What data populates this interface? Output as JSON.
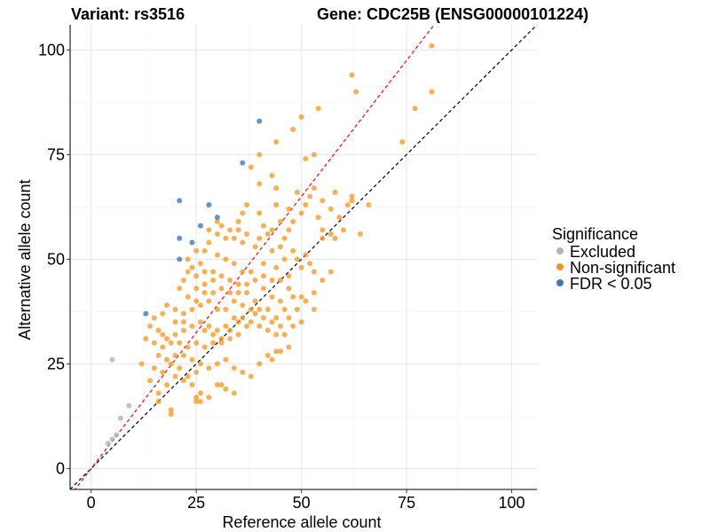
{
  "chart_data": {
    "type": "scatter",
    "title_left": "Variant: rs3516",
    "title_right": "Gene: CDC25B (ENSG00000101224)",
    "xlabel": "Reference allele count",
    "ylabel": "Alternative allele count",
    "xlim": [
      -5,
      106
    ],
    "ylim": [
      -5,
      106
    ],
    "x_ticks": [
      0,
      25,
      50,
      75,
      100
    ],
    "y_ticks": [
      0,
      25,
      50,
      75,
      100
    ],
    "x_tick_labels": [
      "0",
      "25",
      "50",
      "75",
      "100"
    ],
    "y_tick_labels": [
      "0",
      "25",
      "50",
      "75",
      "100"
    ],
    "grid": true,
    "legend": {
      "title": "Significance",
      "placement": "right",
      "entries": [
        {
          "label": "Excluded",
          "color": "#b3b3b3"
        },
        {
          "label": "Non-significant",
          "color": "#f7941d"
        },
        {
          "label": "FDR < 0.05",
          "color": "#4575b4"
        }
      ]
    },
    "reference_lines": [
      {
        "name": "identity",
        "slope": 1.0,
        "intercept": 0,
        "color": "#000000",
        "style": "dashed"
      },
      {
        "name": "fitted-ratio",
        "slope": 1.3,
        "intercept": 0,
        "color": "#ff0000",
        "style": "dashed"
      }
    ],
    "series": [
      {
        "name": "Excluded",
        "color": "#b3b3b3",
        "points": [
          [
            5,
            26
          ],
          [
            4,
            6
          ],
          [
            5,
            7
          ],
          [
            6,
            8
          ],
          [
            7,
            12
          ],
          [
            9,
            15
          ]
        ]
      },
      {
        "name": "FDR < 0.05",
        "color": "#4575b4",
        "points": [
          [
            40,
            83
          ],
          [
            36,
            73
          ],
          [
            21,
            64
          ],
          [
            28,
            63
          ],
          [
            30,
            60
          ],
          [
            26,
            58
          ],
          [
            21,
            55
          ],
          [
            24,
            54
          ],
          [
            21,
            50
          ],
          [
            13,
            37
          ]
        ]
      },
      {
        "name": "Non-significant",
        "color": "#f7941d",
        "points": [
          [
            81,
            101
          ],
          [
            62,
            94
          ],
          [
            63,
            90
          ],
          [
            81,
            90
          ],
          [
            77,
            86
          ],
          [
            54,
            86
          ],
          [
            50,
            84
          ],
          [
            74,
            78
          ],
          [
            48,
            81
          ],
          [
            44,
            78
          ],
          [
            51,
            74
          ],
          [
            53,
            75
          ],
          [
            40,
            75
          ],
          [
            38,
            72
          ],
          [
            43,
            70
          ],
          [
            44,
            67
          ],
          [
            40,
            68
          ],
          [
            49,
            66
          ],
          [
            53,
            67
          ],
          [
            58,
            66
          ],
          [
            62,
            65
          ],
          [
            44,
            63
          ],
          [
            37,
            63
          ],
          [
            40,
            61
          ],
          [
            36,
            61
          ],
          [
            35,
            59
          ],
          [
            47,
            62
          ],
          [
            50,
            61
          ],
          [
            48,
            59
          ],
          [
            51,
            63
          ],
          [
            52,
            65
          ],
          [
            55,
            64
          ],
          [
            57,
            62
          ],
          [
            59,
            60
          ],
          [
            61,
            63
          ],
          [
            54,
            60
          ],
          [
            55,
            57
          ],
          [
            57,
            56
          ],
          [
            60,
            57
          ],
          [
            64,
            56
          ],
          [
            66,
            63
          ],
          [
            62,
            64
          ],
          [
            55,
            55
          ],
          [
            58,
            55
          ],
          [
            40,
            55
          ],
          [
            39,
            53
          ],
          [
            43,
            52
          ],
          [
            45,
            53
          ],
          [
            46,
            55
          ],
          [
            48,
            52
          ],
          [
            49,
            50
          ],
          [
            51,
            51
          ],
          [
            46,
            50
          ],
          [
            53,
            47
          ],
          [
            50,
            48
          ],
          [
            44,
            48
          ],
          [
            41,
            49
          ],
          [
            36,
            54
          ],
          [
            34,
            55
          ],
          [
            33,
            57
          ],
          [
            31,
            58
          ],
          [
            30,
            56
          ],
          [
            28,
            54
          ],
          [
            27,
            52
          ],
          [
            30,
            51
          ],
          [
            32,
            50
          ],
          [
            34,
            49
          ],
          [
            36,
            47
          ],
          [
            38,
            47
          ],
          [
            29,
            47
          ],
          [
            27,
            47
          ],
          [
            25,
            46
          ],
          [
            24,
            48
          ],
          [
            23,
            47
          ],
          [
            22,
            45
          ],
          [
            25,
            43
          ],
          [
            27,
            42
          ],
          [
            29,
            42
          ],
          [
            31,
            43
          ],
          [
            33,
            42
          ],
          [
            35,
            44
          ],
          [
            37,
            42
          ],
          [
            39,
            40
          ],
          [
            41,
            43
          ],
          [
            43,
            41
          ],
          [
            45,
            40
          ],
          [
            47,
            43
          ],
          [
            48,
            41
          ],
          [
            50,
            41
          ],
          [
            46,
            38
          ],
          [
            44,
            36
          ],
          [
            42,
            38
          ],
          [
            40,
            38
          ],
          [
            38,
            38
          ],
          [
            36,
            39
          ],
          [
            34,
            40
          ],
          [
            32,
            38
          ],
          [
            30,
            38
          ],
          [
            28,
            40
          ],
          [
            26,
            39
          ],
          [
            24,
            38
          ],
          [
            22,
            37
          ],
          [
            20,
            38
          ],
          [
            18,
            39
          ],
          [
            17,
            37
          ],
          [
            15,
            36
          ],
          [
            14,
            34
          ],
          [
            16,
            33
          ],
          [
            18,
            31
          ],
          [
            20,
            32
          ],
          [
            22,
            33
          ],
          [
            24,
            34
          ],
          [
            26,
            35
          ],
          [
            28,
            34
          ],
          [
            30,
            33
          ],
          [
            32,
            34
          ],
          [
            34,
            36
          ],
          [
            36,
            36
          ],
          [
            38,
            35
          ],
          [
            40,
            34
          ],
          [
            42,
            33
          ],
          [
            44,
            32
          ],
          [
            35,
            32
          ],
          [
            33,
            31
          ],
          [
            31,
            30
          ],
          [
            29,
            30
          ],
          [
            27,
            29
          ],
          [
            25,
            30
          ],
          [
            23,
            29
          ],
          [
            21,
            30
          ],
          [
            19,
            30
          ],
          [
            17,
            29
          ],
          [
            15,
            30
          ],
          [
            13,
            31
          ],
          [
            16,
            27
          ],
          [
            18,
            26
          ],
          [
            20,
            27
          ],
          [
            22,
            27
          ],
          [
            24,
            26
          ],
          [
            26,
            25
          ],
          [
            28,
            24
          ],
          [
            30,
            25
          ],
          [
            32,
            26
          ],
          [
            34,
            24
          ],
          [
            36,
            23
          ],
          [
            38,
            22
          ],
          [
            40,
            25
          ],
          [
            42,
            27
          ],
          [
            44,
            28
          ],
          [
            25,
            23
          ],
          [
            23,
            22
          ],
          [
            21,
            24
          ],
          [
            19,
            25
          ],
          [
            17,
            23
          ],
          [
            15,
            24
          ],
          [
            12,
            25
          ],
          [
            14,
            21
          ],
          [
            16,
            18
          ],
          [
            18,
            20
          ],
          [
            20,
            22
          ],
          [
            22,
            21
          ],
          [
            24,
            20
          ],
          [
            26,
            18
          ],
          [
            28,
            17
          ],
          [
            30,
            20
          ],
          [
            32,
            19
          ],
          [
            34,
            18
          ],
          [
            16,
            16
          ],
          [
            19,
            14
          ],
          [
            25,
            17
          ],
          [
            26,
            16
          ],
          [
            53,
            38
          ],
          [
            50,
            35
          ],
          [
            48,
            34
          ],
          [
            46,
            32
          ],
          [
            47,
            29
          ],
          [
            45,
            28
          ],
          [
            43,
            26
          ],
          [
            31,
            20
          ],
          [
            25,
            16
          ],
          [
            19,
            13
          ],
          [
            21,
            43
          ],
          [
            23,
            41
          ],
          [
            25,
            40
          ],
          [
            20,
            35
          ],
          [
            22,
            35
          ],
          [
            17,
            32
          ],
          [
            27,
            33
          ],
          [
            29,
            32
          ],
          [
            31,
            31
          ],
          [
            33,
            33
          ],
          [
            35,
            35
          ],
          [
            37,
            34
          ],
          [
            39,
            37
          ],
          [
            41,
            36
          ],
          [
            43,
            35
          ],
          [
            45,
            34
          ],
          [
            47,
            36
          ],
          [
            49,
            38
          ],
          [
            51,
            40
          ],
          [
            53,
            42
          ],
          [
            55,
            45
          ],
          [
            57,
            47
          ],
          [
            52,
            49
          ],
          [
            47,
            46
          ],
          [
            45,
            45
          ],
          [
            43,
            45
          ],
          [
            41,
            46
          ],
          [
            39,
            45
          ],
          [
            37,
            44
          ],
          [
            35,
            42
          ],
          [
            33,
            45
          ],
          [
            31,
            46
          ],
          [
            29,
            45
          ],
          [
            27,
            44
          ],
          [
            25,
            52
          ],
          [
            23,
            50
          ],
          [
            26,
            49
          ],
          [
            28,
            57
          ],
          [
            30,
            59
          ],
          [
            32,
            55
          ],
          [
            35,
            57
          ],
          [
            37,
            56
          ],
          [
            41,
            58
          ],
          [
            43,
            57
          ],
          [
            45,
            59
          ],
          [
            47,
            57
          ],
          [
            42,
            56
          ]
        ]
      }
    ]
  }
}
